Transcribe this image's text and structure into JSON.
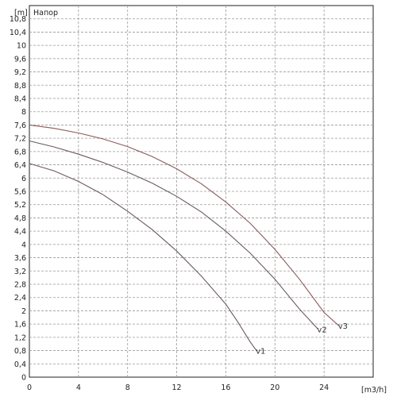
{
  "chart_data": {
    "type": "line",
    "title": "Напор",
    "ylabel": "[m]",
    "xlabel": "[m3/h]",
    "xlim": [
      0,
      28
    ],
    "ylim": [
      0,
      11.2
    ],
    "x_ticks": [
      "0",
      "4",
      "8",
      "12",
      "16",
      "20",
      "24"
    ],
    "y_ticks": [
      "0",
      "0,4",
      "0,8",
      "1,2",
      "1,6",
      "2",
      "2,4",
      "2,8",
      "3,2",
      "3,6",
      "4",
      "4,4",
      "4,8",
      "5,2",
      "5,6",
      "6",
      "6,4",
      "6,8",
      "7,2",
      "7,6",
      "8",
      "8,4",
      "8,8",
      "9,2",
      "9,6",
      "10",
      "10,4",
      "10,8"
    ],
    "grid": true,
    "series": [
      {
        "name": "v1",
        "color": "#6b5a5a",
        "x": [
          0,
          2,
          4,
          6,
          8,
          10,
          12,
          14,
          16,
          17,
          18,
          18.5
        ],
        "y": [
          6.44,
          6.22,
          5.9,
          5.5,
          5.0,
          4.45,
          3.8,
          3.05,
          2.2,
          1.65,
          1.05,
          0.8
        ]
      },
      {
        "name": "v2",
        "color": "#6b5a5a",
        "x": [
          0,
          2,
          4,
          6,
          8,
          10,
          12,
          14,
          16,
          18,
          20,
          22,
          23.5
        ],
        "y": [
          7.12,
          6.94,
          6.72,
          6.47,
          6.18,
          5.85,
          5.45,
          4.98,
          4.4,
          3.73,
          2.95,
          2.05,
          1.45
        ]
      },
      {
        "name": "v3",
        "color": "#8a5a5a",
        "x": [
          0,
          2,
          4,
          6,
          8,
          10,
          12,
          14,
          16,
          18,
          20,
          22,
          24,
          25.2
        ],
        "y": [
          7.6,
          7.5,
          7.36,
          7.18,
          6.95,
          6.65,
          6.28,
          5.83,
          5.28,
          4.63,
          3.85,
          2.95,
          1.95,
          1.55
        ]
      }
    ]
  }
}
